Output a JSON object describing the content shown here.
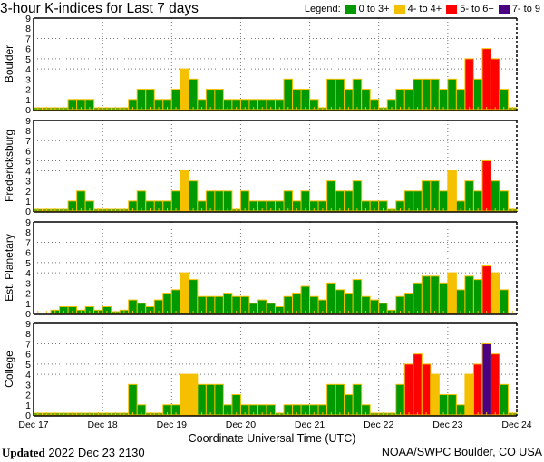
{
  "chart_data": {
    "type": "bar",
    "title": "3-hour K-indices for Last 7 days",
    "legend": {
      "label": "Legend:",
      "placement": "top-right",
      "entries": [
        {
          "label": "0 to 3+",
          "color": "#009900"
        },
        {
          "label": "4- to 4+",
          "color": "#f5c000"
        },
        {
          "label": "5- to 6+",
          "color": "#ff0000"
        },
        {
          "label": "7- to 9",
          "color": "#4b0082"
        }
      ]
    },
    "bar_outline_color": "#f5c000",
    "xlabel": "Coordinate Universal Time (UTC)",
    "x_tick_labels": [
      "Dec 17",
      "Dec 18",
      "Dec 19",
      "Dec 20",
      "Dec 21",
      "Dec 22",
      "Dec 23",
      "Dec 24"
    ],
    "interval_hours": 3,
    "ylim": [
      0,
      9
    ],
    "y_ticks": [
      0,
      1,
      2,
      3,
      4,
      5,
      6,
      7,
      8,
      9
    ],
    "grid": {
      "horizontal_dotted_at": [
        4,
        5,
        7
      ],
      "vertical_dotted_at_days": true
    },
    "panels": [
      {
        "name": "Boulder",
        "values": [
          0,
          0,
          0,
          0,
          1,
          1,
          1,
          0,
          0,
          0,
          0,
          1,
          2,
          2,
          1,
          1,
          2,
          4,
          3,
          1,
          2,
          2,
          1,
          1,
          1,
          1,
          1,
          1,
          1,
          3,
          2,
          2,
          1,
          0,
          3,
          3,
          2,
          3,
          2,
          1,
          0,
          1,
          2,
          2,
          3,
          3,
          3,
          2,
          3,
          2,
          5,
          3,
          6,
          5,
          2,
          0
        ]
      },
      {
        "name": "Fredericksburg",
        "values": [
          0,
          0,
          0,
          0,
          1,
          2,
          1,
          0,
          0,
          0,
          0,
          1,
          2,
          1,
          1,
          1,
          2,
          4,
          3,
          1,
          2,
          2,
          2,
          0,
          2,
          1,
          1,
          1,
          1,
          2,
          1,
          2,
          1,
          1,
          3,
          2,
          2,
          3,
          1,
          1,
          1,
          0,
          1,
          2,
          2,
          3,
          3,
          2,
          4,
          1,
          3,
          2,
          5,
          3,
          2,
          0
        ]
      },
      {
        "name": "Est. Planetary",
        "values": [
          null,
          null,
          0.33,
          0.67,
          0.67,
          0.33,
          0.67,
          0.33,
          0.67,
          0,
          0.33,
          1.33,
          1,
          0.67,
          1.33,
          2,
          2.33,
          4,
          3.33,
          1.67,
          1.67,
          1.67,
          2,
          1.67,
          1.67,
          1,
          1.33,
          1,
          0.67,
          1.67,
          2,
          2.67,
          1.67,
          1.33,
          3,
          2.33,
          2,
          3.33,
          1.67,
          1.33,
          1,
          0.33,
          1.67,
          2,
          3,
          3.67,
          3.67,
          3,
          4,
          2.33,
          3.67,
          3.33,
          4.67,
          4,
          2.33,
          null
        ]
      },
      {
        "name": "College",
        "values": [
          0,
          0,
          0,
          0,
          0,
          0,
          0,
          0,
          0,
          0,
          0,
          3,
          1,
          0,
          0,
          1,
          1,
          4,
          4,
          3,
          3,
          3,
          1,
          2,
          1,
          1,
          1,
          1,
          0,
          1,
          1,
          1,
          1,
          1,
          3,
          3,
          2,
          3,
          1,
          0,
          0,
          0,
          3,
          5,
          6,
          5,
          4,
          2,
          2,
          1,
          4,
          5,
          7,
          6,
          3,
          0
        ]
      }
    ]
  },
  "footer": {
    "updated_label": "Updated",
    "updated_value": "2022 Dec 23 2130",
    "credit": "NOAA/SWPC Boulder, CO USA"
  }
}
